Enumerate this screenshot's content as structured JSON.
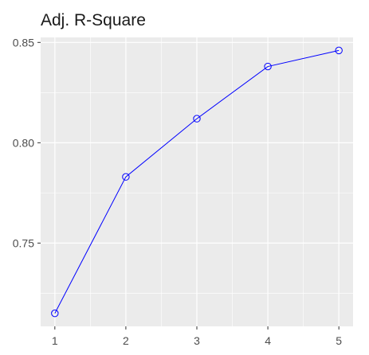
{
  "chart_data": {
    "type": "line",
    "title": "Adj. R-Square",
    "xlabel": "",
    "ylabel": "",
    "x": [
      1,
      2,
      3,
      4,
      5
    ],
    "series": [
      {
        "values": [
          0.715,
          0.783,
          0.812,
          0.838,
          0.846
        ],
        "color": "#0000ff",
        "marker": "open-circle"
      }
    ],
    "xlim": [
      0.8,
      5.2
    ],
    "ylim": [
      0.7085,
      0.8525
    ],
    "xticks": [
      "1",
      "2",
      "3",
      "4",
      "5"
    ],
    "yticks": [
      "0.75",
      "0.80",
      "0.85"
    ],
    "grid": true,
    "panel_background": "#ebebeb"
  }
}
